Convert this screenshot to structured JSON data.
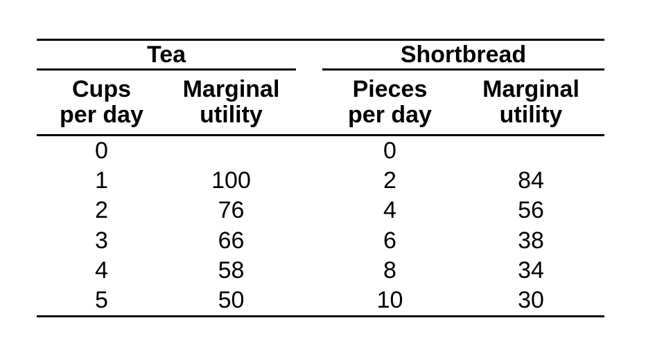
{
  "table": {
    "groups": [
      {
        "label": "Tea"
      },
      {
        "label": "Shortbread"
      }
    ],
    "columns": [
      {
        "line1": "Cups",
        "line2": "per day"
      },
      {
        "line1": "Marginal",
        "line2": "utility"
      },
      {
        "line1": "Pieces",
        "line2": "per day"
      },
      {
        "line1": "Marginal",
        "line2": "utility"
      }
    ],
    "rows": [
      {
        "cells": [
          "0",
          "",
          "0",
          ""
        ]
      },
      {
        "cells": [
          "1",
          "100",
          "2",
          "84"
        ]
      },
      {
        "cells": [
          "2",
          "76",
          "4",
          "56"
        ]
      },
      {
        "cells": [
          "3",
          "66",
          "6",
          "38"
        ]
      },
      {
        "cells": [
          "4",
          "58",
          "8",
          "34"
        ]
      },
      {
        "cells": [
          "5",
          "50",
          "10",
          "30"
        ]
      }
    ]
  },
  "colors": {
    "text": "#000000",
    "background": "#ffffff",
    "rule": "#000000"
  },
  "chart_data": {
    "type": "table",
    "tables": [
      {
        "group": "Tea",
        "columns": [
          "Cups per day",
          "Marginal utility"
        ],
        "rows": [
          [
            0,
            null
          ],
          [
            1,
            100
          ],
          [
            2,
            76
          ],
          [
            3,
            66
          ],
          [
            4,
            58
          ],
          [
            5,
            50
          ]
        ]
      },
      {
        "group": "Shortbread",
        "columns": [
          "Pieces per day",
          "Marginal utility"
        ],
        "rows": [
          [
            0,
            null
          ],
          [
            2,
            84
          ],
          [
            4,
            56
          ],
          [
            6,
            38
          ],
          [
            8,
            34
          ],
          [
            10,
            30
          ]
        ]
      }
    ]
  }
}
